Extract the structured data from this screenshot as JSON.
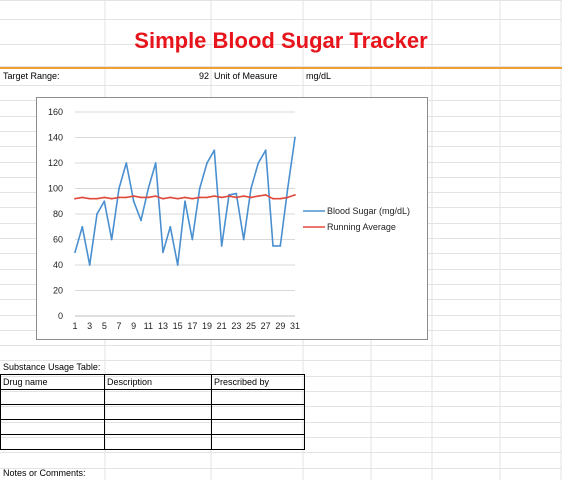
{
  "header": {
    "title": "Simple Blood Sugar Tracker",
    "accent_color": "#e8141b"
  },
  "settings": {
    "target_range_label": "Target Range:",
    "target_range_value": "92",
    "unit_label": "Unit of Measure",
    "unit_value": "mg/dL"
  },
  "chart_data": {
    "type": "line",
    "x": [
      1,
      2,
      3,
      4,
      5,
      6,
      7,
      8,
      9,
      10,
      11,
      12,
      13,
      14,
      15,
      16,
      17,
      18,
      19,
      20,
      21,
      22,
      23,
      24,
      25,
      26,
      27,
      28,
      29,
      30,
      31
    ],
    "x_ticks": [
      "1",
      "3",
      "5",
      "7",
      "9",
      "11",
      "13",
      "15",
      "17",
      "19",
      "21",
      "23",
      "25",
      "27",
      "29",
      "31"
    ],
    "y_ticks": [
      "0",
      "20",
      "40",
      "60",
      "80",
      "100",
      "120",
      "140",
      "160"
    ],
    "ylim": [
      0,
      160
    ],
    "grid": true,
    "legend_position": "right",
    "series": [
      {
        "name": "Blood Sugar  (mg/dL)",
        "color": "#4a90d0",
        "values": [
          50,
          70,
          40,
          80,
          90,
          60,
          100,
          120,
          90,
          75,
          100,
          120,
          50,
          70,
          40,
          90,
          60,
          100,
          120,
          130,
          55,
          95,
          96,
          60,
          100,
          120,
          130,
          55,
          55,
          100,
          140
        ]
      },
      {
        "name": "Running Average",
        "color": "#e04a3c",
        "values": [
          92,
          93,
          92,
          92,
          93,
          92,
          93,
          93,
          94,
          93,
          93,
          94,
          92,
          93,
          92,
          93,
          92,
          93,
          93,
          94,
          93,
          94,
          93,
          94,
          93,
          94,
          95,
          92,
          92,
          93,
          95
        ]
      }
    ]
  },
  "substance_table": {
    "caption": "Substance Usage Table:",
    "headers": [
      "Drug name",
      "Description",
      "Prescribed by"
    ],
    "rows": [
      [
        "",
        "",
        ""
      ],
      [
        "",
        "",
        ""
      ],
      [
        "",
        "",
        ""
      ],
      [
        "",
        "",
        ""
      ]
    ]
  },
  "notes": {
    "label": "Notes or Comments:"
  }
}
